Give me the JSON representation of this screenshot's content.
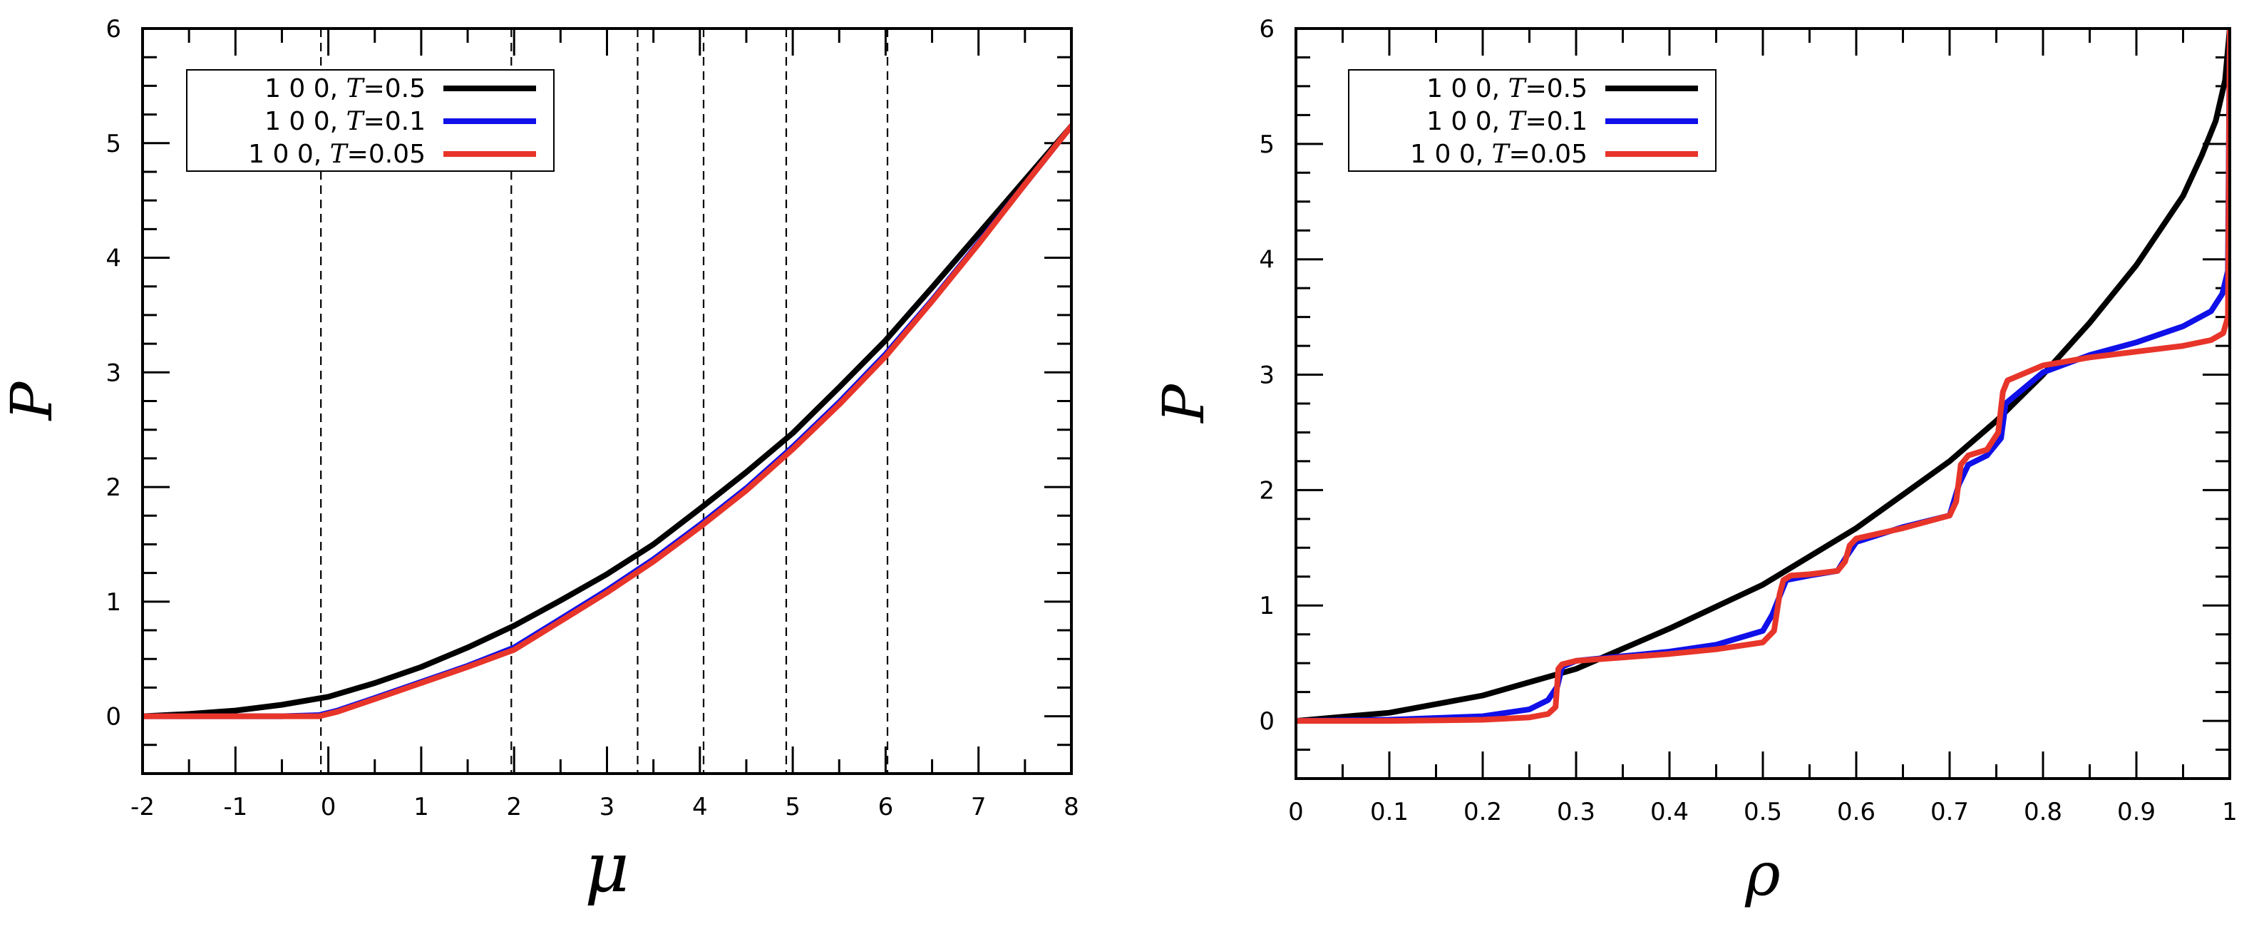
{
  "colors": {
    "T05": "#000000",
    "T01": "#1010e8",
    "T005": "#e8352a"
  },
  "chart_data": [
    {
      "type": "line",
      "title": "",
      "xlabel": "μ",
      "ylabel": "P",
      "xlim": [
        -2,
        8
      ],
      "ylim": [
        -0.5,
        6
      ],
      "xticks": [
        -2,
        -1,
        0,
        1,
        2,
        3,
        4,
        5,
        6,
        7,
        8
      ],
      "yticks": [
        0,
        1,
        2,
        3,
        4,
        5,
        6
      ],
      "xtick_labels": [
        "-2",
        "-1",
        "0",
        "1",
        "2",
        "3",
        "4",
        "5",
        "6",
        "7",
        "8"
      ],
      "ytick_labels": [
        "0",
        "1",
        "2",
        "3",
        "4",
        "5",
        "6"
      ],
      "vlines_dashed": [
        -0.08,
        1.97,
        3.33,
        4.04,
        4.93,
        6.02
      ],
      "legend_placement": "top-left",
      "series": [
        {
          "name": "T05",
          "label_prefix": "1 0 0, ",
          "label_var": "T",
          "label_suffix": "=0.5",
          "color": "#000000",
          "x": [
            -2,
            -1.5,
            -1,
            -0.5,
            0,
            0.5,
            1,
            1.5,
            2,
            2.5,
            3,
            3.5,
            4,
            4.5,
            5,
            5.5,
            6,
            6.5,
            7,
            7.5,
            8
          ],
          "y": [
            0.0,
            0.02,
            0.05,
            0.1,
            0.17,
            0.29,
            0.43,
            0.6,
            0.79,
            1.01,
            1.24,
            1.5,
            1.81,
            2.13,
            2.47,
            2.87,
            3.28,
            3.74,
            4.21,
            4.68,
            5.15
          ]
        },
        {
          "name": "T01",
          "label_prefix": "1 0 0, ",
          "label_var": "T",
          "label_suffix": "=0.1",
          "color": "#1010e8",
          "x": [
            -2,
            -1,
            -0.5,
            -0.1,
            0.1,
            0.5,
            1,
            1.5,
            2,
            2.5,
            3,
            3.5,
            4,
            4.5,
            5,
            5.5,
            6,
            6.5,
            7,
            7.5,
            8
          ],
          "y": [
            0.0,
            0.0,
            0.0,
            0.01,
            0.05,
            0.16,
            0.3,
            0.44,
            0.6,
            0.85,
            1.1,
            1.37,
            1.67,
            1.99,
            2.35,
            2.74,
            3.16,
            3.63,
            4.13,
            4.64,
            5.15
          ]
        },
        {
          "name": "T005",
          "label_prefix": "1 0 0, ",
          "label_var": "T",
          "label_suffix": "=0.05",
          "color": "#e8352a",
          "x": [
            -2,
            -1,
            -0.5,
            -0.1,
            0.1,
            0.5,
            1,
            1.5,
            2,
            2.5,
            3,
            3.5,
            4,
            4.5,
            5,
            5.5,
            6,
            6.5,
            7,
            7.5,
            8
          ],
          "y": [
            0.0,
            0.0,
            0.0,
            0.0,
            0.04,
            0.15,
            0.29,
            0.43,
            0.58,
            0.83,
            1.08,
            1.35,
            1.65,
            1.97,
            2.33,
            2.72,
            3.14,
            3.62,
            4.12,
            4.64,
            5.15
          ]
        }
      ]
    },
    {
      "type": "line",
      "title": "",
      "xlabel": "ρ",
      "ylabel": "P",
      "xlim": [
        0,
        1
      ],
      "ylim": [
        -0.5,
        6
      ],
      "xticks": [
        0,
        0.1,
        0.2,
        0.3,
        0.4,
        0.5,
        0.6,
        0.7,
        0.8,
        0.9,
        1
      ],
      "yticks": [
        0,
        1,
        2,
        3,
        4,
        5,
        6
      ],
      "xtick_labels": [
        "0",
        "0.1",
        "0.2",
        "0.3",
        "0.4",
        "0.5",
        "0.6",
        "0.7",
        "0.8",
        "0.9",
        "1"
      ],
      "ytick_labels": [
        "0",
        "1",
        "2",
        "3",
        "4",
        "5",
        "6"
      ],
      "legend_placement": "top-left",
      "series": [
        {
          "name": "T05",
          "label_prefix": "1 0 0, ",
          "label_var": "T",
          "label_suffix": "=0.5",
          "color": "#000000",
          "x": [
            0,
            0.1,
            0.2,
            0.3,
            0.4,
            0.5,
            0.6,
            0.7,
            0.75,
            0.8,
            0.85,
            0.9,
            0.95,
            0.97,
            0.985,
            0.995,
            1.0
          ],
          "y": [
            0.0,
            0.07,
            0.22,
            0.45,
            0.8,
            1.18,
            1.67,
            2.25,
            2.6,
            3.0,
            3.45,
            3.95,
            4.55,
            4.9,
            5.2,
            5.55,
            6.0
          ]
        },
        {
          "name": "T01",
          "label_prefix": "1 0 0, ",
          "label_var": "T",
          "label_suffix": "=0.1",
          "color": "#1010e8",
          "x": [
            0,
            0.1,
            0.2,
            0.25,
            0.27,
            0.28,
            0.285,
            0.3,
            0.35,
            0.4,
            0.45,
            0.5,
            0.51,
            0.52,
            0.525,
            0.55,
            0.58,
            0.59,
            0.6,
            0.65,
            0.7,
            0.71,
            0.72,
            0.74,
            0.755,
            0.76,
            0.8,
            0.85,
            0.9,
            0.95,
            0.98,
            0.992,
            0.998,
            1.0
          ],
          "y": [
            0.0,
            0.01,
            0.04,
            0.1,
            0.18,
            0.3,
            0.47,
            0.52,
            0.56,
            0.6,
            0.66,
            0.78,
            0.92,
            1.12,
            1.22,
            1.26,
            1.3,
            1.43,
            1.55,
            1.68,
            1.78,
            2.05,
            2.22,
            2.3,
            2.45,
            2.75,
            3.02,
            3.17,
            3.28,
            3.42,
            3.55,
            3.7,
            3.9,
            6.0
          ]
        },
        {
          "name": "T005",
          "label_prefix": "1 0 0, ",
          "label_var": "T",
          "label_suffix": "=0.05",
          "color": "#e8352a",
          "x": [
            0,
            0.1,
            0.2,
            0.25,
            0.27,
            0.278,
            0.281,
            0.285,
            0.3,
            0.35,
            0.4,
            0.45,
            0.5,
            0.512,
            0.518,
            0.522,
            0.53,
            0.55,
            0.58,
            0.588,
            0.593,
            0.6,
            0.65,
            0.7,
            0.707,
            0.712,
            0.72,
            0.74,
            0.752,
            0.757,
            0.762,
            0.8,
            0.85,
            0.9,
            0.95,
            0.98,
            0.993,
            0.998,
            1.0
          ],
          "y": [
            0.0,
            0.0,
            0.01,
            0.03,
            0.06,
            0.12,
            0.45,
            0.49,
            0.52,
            0.55,
            0.58,
            0.62,
            0.68,
            0.78,
            1.1,
            1.22,
            1.26,
            1.27,
            1.3,
            1.38,
            1.52,
            1.58,
            1.67,
            1.78,
            1.9,
            2.22,
            2.3,
            2.35,
            2.5,
            2.85,
            2.95,
            3.08,
            3.15,
            3.2,
            3.25,
            3.3,
            3.36,
            3.5,
            6.0
          ]
        }
      ]
    }
  ]
}
